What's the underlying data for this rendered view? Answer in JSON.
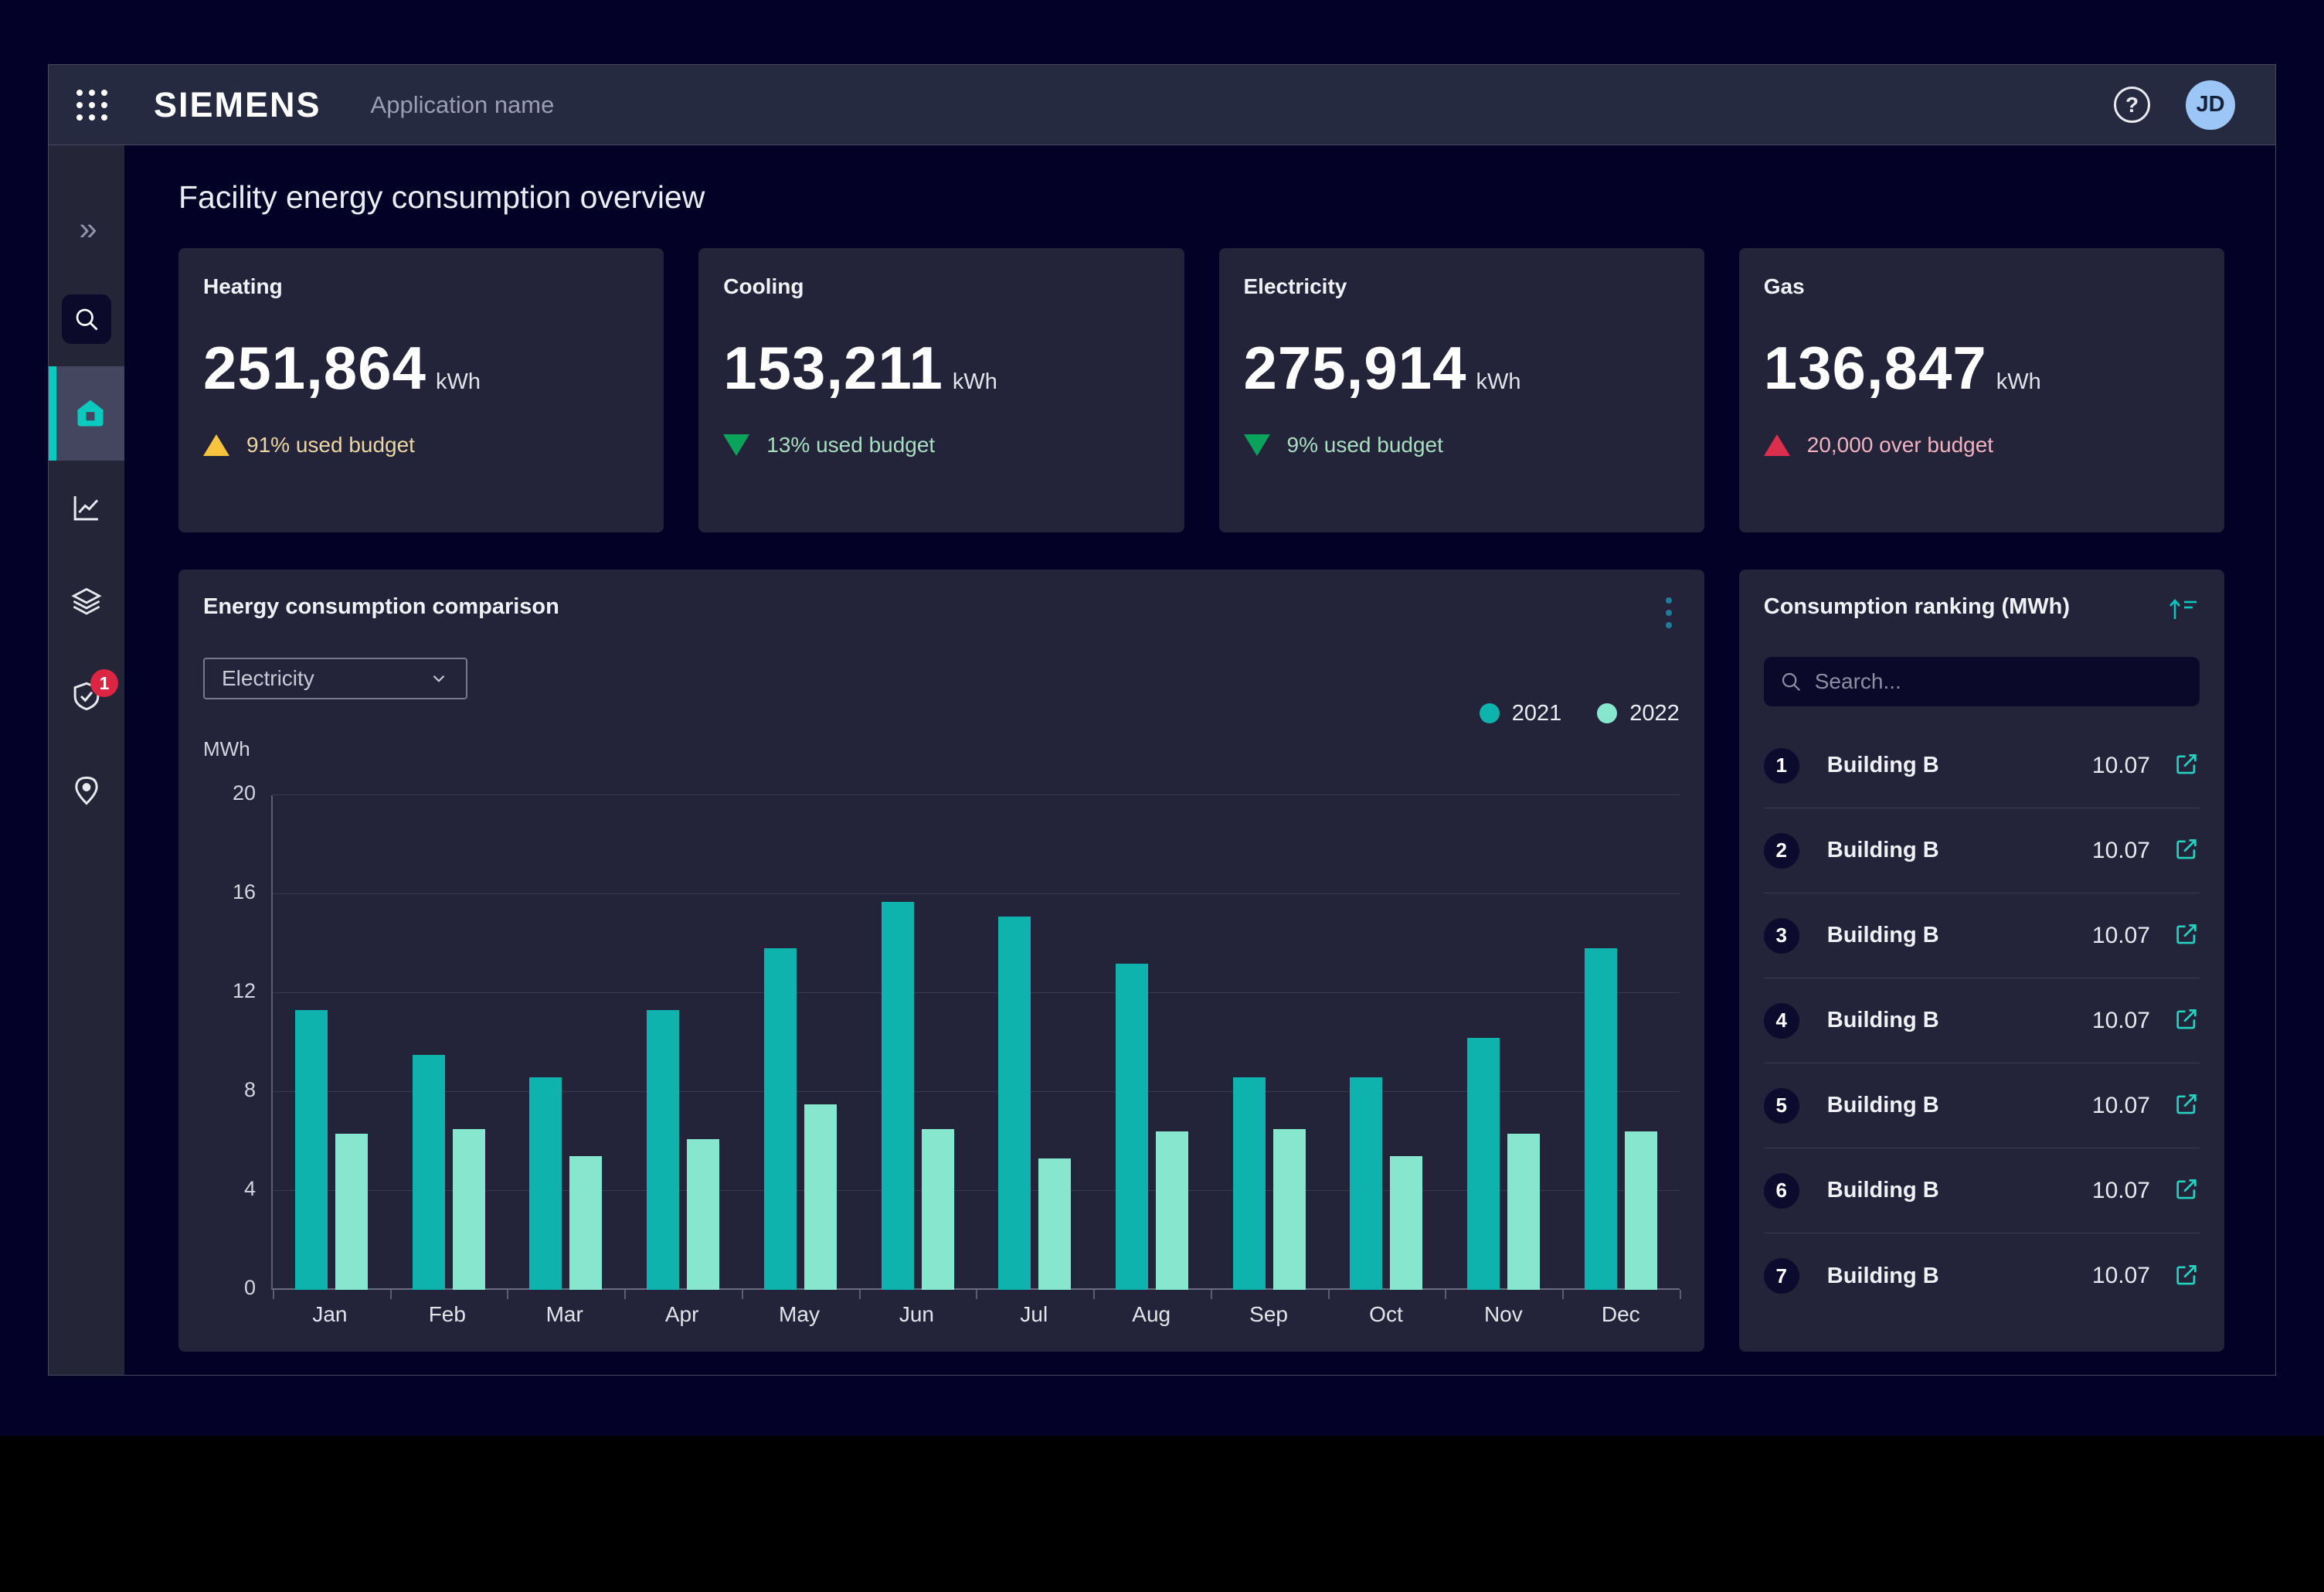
{
  "topbar": {
    "logo": "SIEMENS",
    "app_name": "Application name",
    "help_label": "?",
    "avatar_initials": "JD"
  },
  "sidebar": {
    "notification_count": "1",
    "items": [
      "expand",
      "search",
      "home",
      "trends",
      "layers",
      "compliance",
      "locations"
    ],
    "active_item": "home",
    "active_color": "#0ac9be"
  },
  "page": {
    "title": "Facility energy consumption overview"
  },
  "kpi_cards": [
    {
      "label": "Heating",
      "value": "251,864",
      "unit": "kWh",
      "status": "warning",
      "status_text": "91% used budget"
    },
    {
      "label": "Cooling",
      "value": "153,211",
      "unit": "kWh",
      "status": "good",
      "status_text": "13% used budget"
    },
    {
      "label": "Electricity",
      "value": "275,914",
      "unit": "kWh",
      "status": "good",
      "status_text": "9% used budget"
    },
    {
      "label": "Gas",
      "value": "136,847",
      "unit": "kWh",
      "status": "over",
      "status_text": "20,000 over budget"
    }
  ],
  "status_colors": {
    "warning": {
      "icon": "#f8c43e",
      "text": "#ecd7a2",
      "dir": "up"
    },
    "good": {
      "icon": "#0aa35c",
      "text": "#a9dfc0",
      "dir": "down"
    },
    "over": {
      "icon": "#dc2e4d",
      "text": "#f2b3c1",
      "dir": "up"
    }
  },
  "chart_panel": {
    "title": "Energy consumption comparison",
    "dropdown_value": "Electricity",
    "y_axis_label": "MWh"
  },
  "chart_data": {
    "type": "bar",
    "title": "Energy consumption comparison",
    "categories": [
      "Jan",
      "Feb",
      "Mar",
      "Apr",
      "May",
      "Jun",
      "Jul",
      "Aug",
      "Sep",
      "Oct",
      "Nov",
      "Dec"
    ],
    "series": [
      {
        "name": "2021",
        "color": "#0db3ac",
        "values": [
          11.3,
          9.5,
          8.6,
          11.3,
          13.8,
          15.7,
          15.1,
          13.2,
          8.6,
          8.6,
          10.2,
          13.8
        ]
      },
      {
        "name": "2022",
        "color": "#87e7ce",
        "values": [
          6.3,
          6.5,
          5.4,
          6.1,
          7.5,
          6.5,
          5.3,
          6.4,
          6.5,
          5.4,
          6.3,
          6.4
        ]
      }
    ],
    "xlabel": "",
    "ylabel": "MWh",
    "ylim": [
      0,
      20
    ],
    "yticks": [
      0,
      4,
      8,
      12,
      16,
      20
    ],
    "grid": "horizontal",
    "legend_position": "top-right"
  },
  "ranking_panel": {
    "title": "Consumption ranking (MWh)",
    "search_placeholder": "Search...",
    "rows": [
      {
        "rank": "1",
        "name": "Building B",
        "value": "10.07"
      },
      {
        "rank": "2",
        "name": "Building B",
        "value": "10.07"
      },
      {
        "rank": "3",
        "name": "Building B",
        "value": "10.07"
      },
      {
        "rank": "4",
        "name": "Building B",
        "value": "10.07"
      },
      {
        "rank": "5",
        "name": "Building B",
        "value": "10.07"
      },
      {
        "rank": "6",
        "name": "Building B",
        "value": "10.07"
      },
      {
        "rank": "7",
        "name": "Building B",
        "value": "10.07"
      }
    ]
  }
}
